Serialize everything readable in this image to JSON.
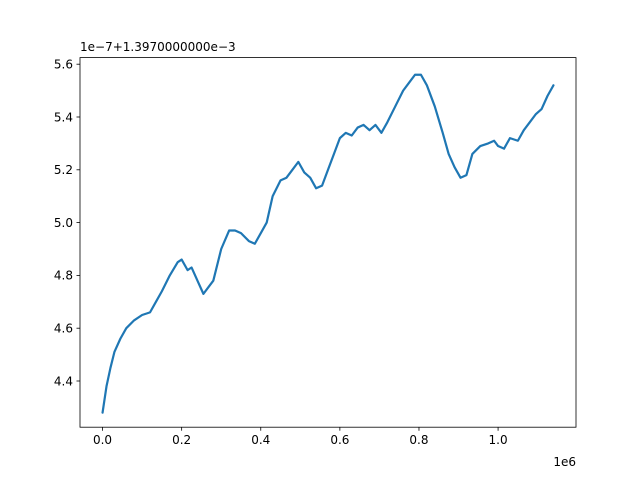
{
  "chart_data": {
    "type": "line",
    "title": "",
    "xlabel": "",
    "ylabel": "",
    "x_scale_label": "1e6",
    "y_offset_label": "1e−7+1.3970000000e−3",
    "xlim": [
      -0.057,
      1.197
    ],
    "ylim": [
      4.225,
      5.625
    ],
    "x_ticks": [
      0.0,
      0.2,
      0.4,
      0.6,
      0.8,
      1.0
    ],
    "x_tick_labels": [
      "0.0",
      "0.2",
      "0.4",
      "0.6",
      "0.8",
      "1.0"
    ],
    "y_ticks": [
      4.4,
      4.6,
      4.8,
      5.0,
      5.2,
      5.4,
      5.6
    ],
    "y_tick_labels": [
      "4.4",
      "4.6",
      "4.8",
      "5.0",
      "5.2",
      "5.4",
      "5.6"
    ],
    "grid": false,
    "series": [
      {
        "color": "#1f77b4",
        "x": [
          0.0,
          0.01,
          0.02,
          0.03,
          0.045,
          0.06,
          0.08,
          0.1,
          0.12,
          0.135,
          0.15,
          0.17,
          0.19,
          0.2,
          0.215,
          0.225,
          0.24,
          0.255,
          0.27,
          0.28,
          0.3,
          0.32,
          0.335,
          0.35,
          0.37,
          0.385,
          0.4,
          0.415,
          0.43,
          0.45,
          0.465,
          0.48,
          0.495,
          0.51,
          0.525,
          0.54,
          0.555,
          0.57,
          0.585,
          0.6,
          0.615,
          0.63,
          0.645,
          0.66,
          0.675,
          0.69,
          0.705,
          0.72,
          0.74,
          0.76,
          0.775,
          0.79,
          0.805,
          0.82,
          0.84,
          0.86,
          0.875,
          0.89,
          0.905,
          0.92,
          0.935,
          0.955,
          0.975,
          0.99,
          1.0,
          1.015,
          1.03,
          1.05,
          1.065,
          1.08,
          1.095,
          1.11,
          1.125,
          1.14
        ],
        "y": [
          4.28,
          4.38,
          4.45,
          4.51,
          4.56,
          4.6,
          4.63,
          4.65,
          4.66,
          4.7,
          4.74,
          4.8,
          4.85,
          4.86,
          4.82,
          4.83,
          4.78,
          4.73,
          4.76,
          4.78,
          4.9,
          4.97,
          4.97,
          4.96,
          4.93,
          4.92,
          4.96,
          5.0,
          5.1,
          5.16,
          5.17,
          5.2,
          5.23,
          5.19,
          5.17,
          5.13,
          5.14,
          5.2,
          5.26,
          5.32,
          5.34,
          5.33,
          5.36,
          5.37,
          5.35,
          5.37,
          5.34,
          5.38,
          5.44,
          5.5,
          5.53,
          5.56,
          5.56,
          5.52,
          5.44,
          5.34,
          5.26,
          5.21,
          5.17,
          5.18,
          5.26,
          5.29,
          5.3,
          5.31,
          5.29,
          5.28,
          5.32,
          5.31,
          5.35,
          5.38,
          5.41,
          5.43,
          5.48,
          5.52
        ]
      }
    ]
  }
}
